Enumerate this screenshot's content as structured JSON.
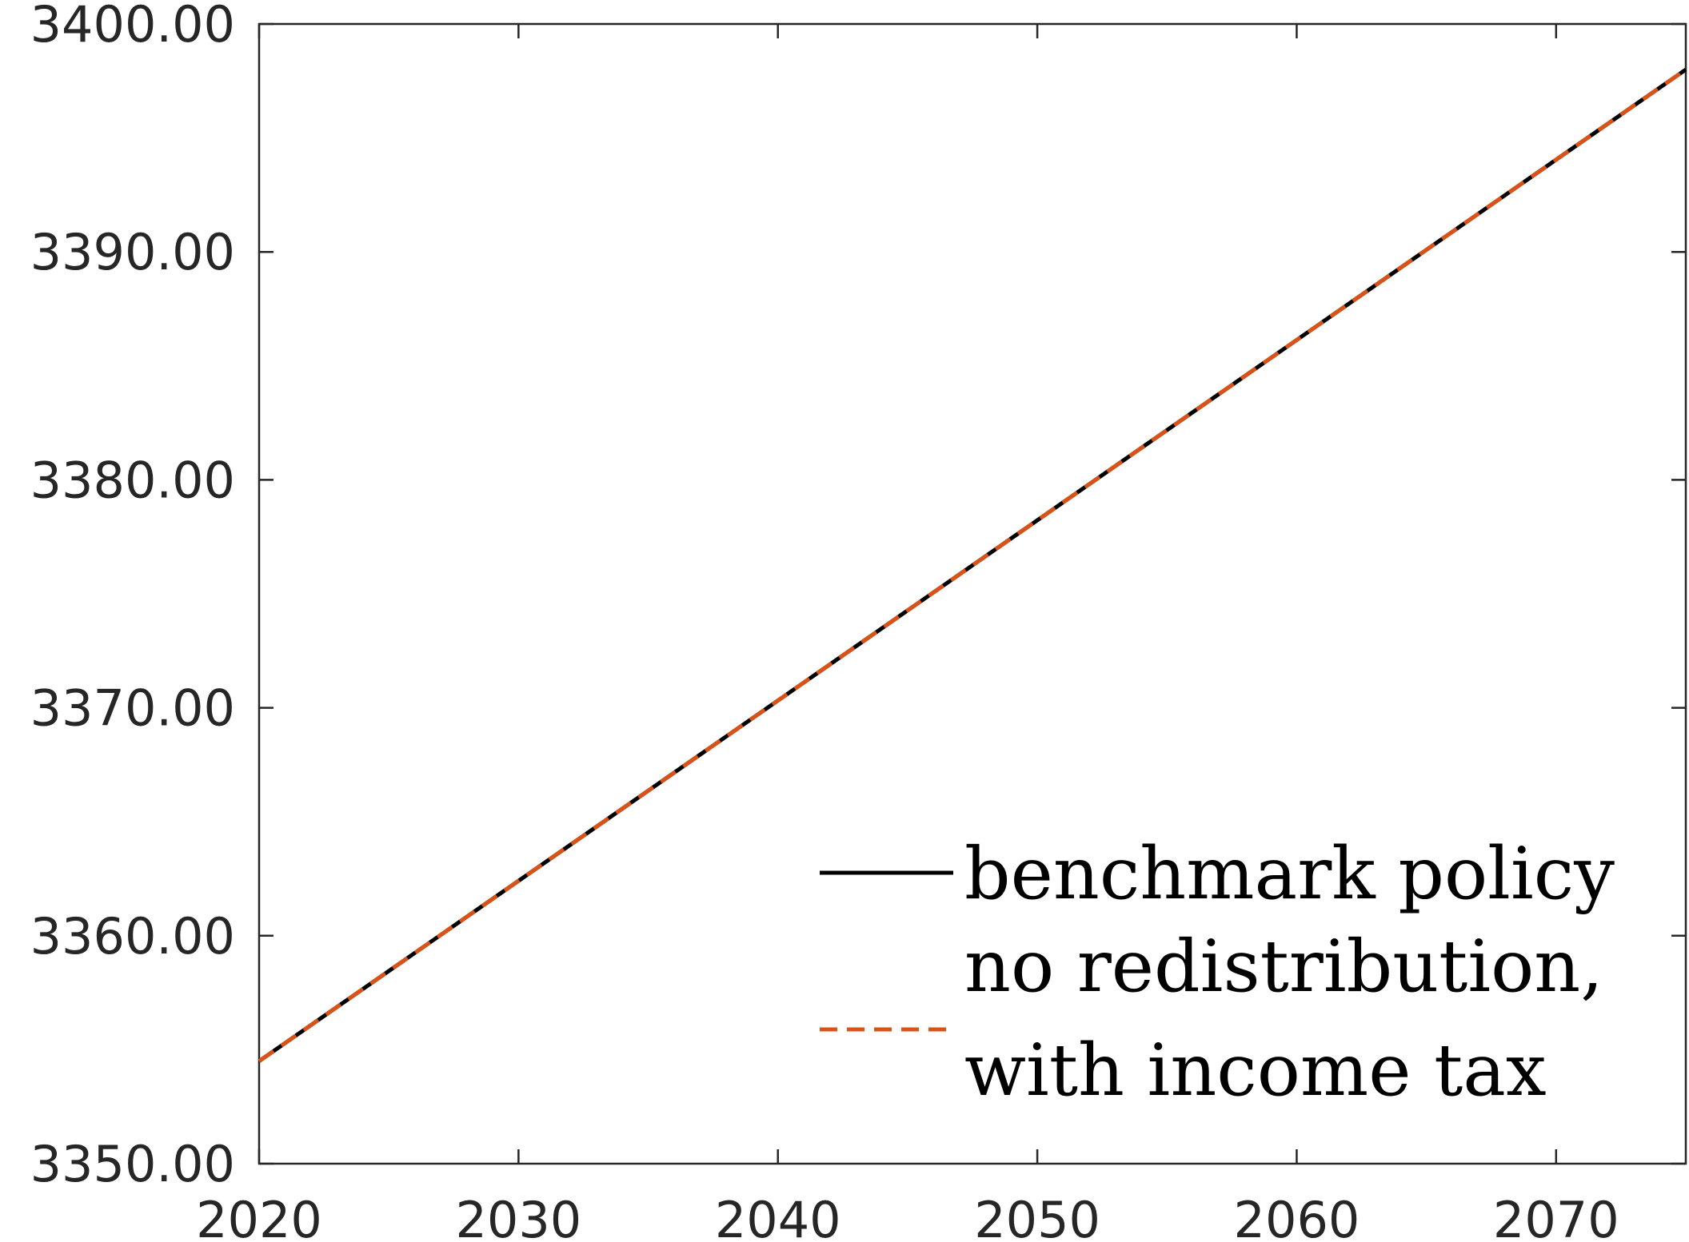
{
  "chart_data": {
    "type": "line",
    "title": "",
    "xlabel": "",
    "ylabel": "",
    "xlim": [
      2020,
      2075
    ],
    "ylim": [
      3350,
      3400
    ],
    "xticks": [
      2020,
      2030,
      2040,
      2050,
      2060,
      2070
    ],
    "yticks": [
      3350,
      3360,
      3370,
      3380,
      3390,
      3400
    ],
    "xtick_labels": [
      "2020",
      "2030",
      "2040",
      "2050",
      "2060",
      "2070"
    ],
    "ytick_labels": [
      "3350.00",
      "3360.00",
      "3370.00",
      "3380.00",
      "3390.00",
      "3400.00"
    ],
    "grid": false,
    "legend_position": "bottom-right",
    "series": [
      {
        "name": "benchmark policy",
        "style": "solid",
        "color": "#000000",
        "x": [
          2020,
          2075
        ],
        "y": [
          3354.5,
          3398.0
        ]
      },
      {
        "name": "no redistribution,",
        "name_line2": "with income tax",
        "style": "dashed",
        "color": "#D95319",
        "x": [
          2020,
          2075
        ],
        "y": [
          3354.5,
          3398.0
        ]
      }
    ]
  }
}
